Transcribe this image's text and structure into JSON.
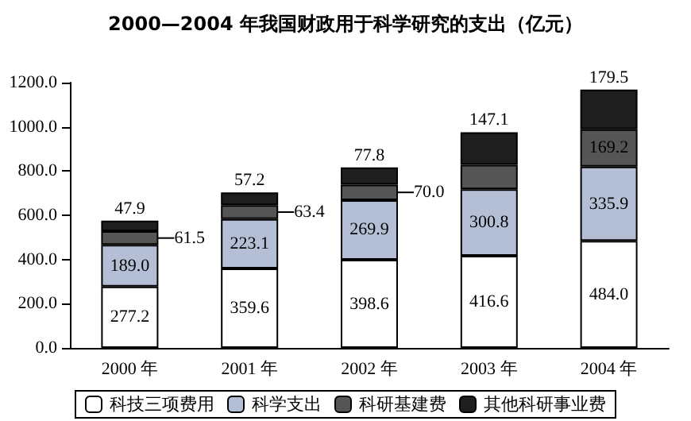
{
  "chart_data": {
    "type": "bar",
    "title": "2000—2004 年我国财政用于科学研究的支出（亿元）",
    "categories": [
      "2000 年",
      "2001 年",
      "2002 年",
      "2003 年",
      "2004 年"
    ],
    "stacked": true,
    "series": [
      {
        "name": "科技三项费用",
        "color": "#ffffff",
        "values": [
          277.2,
          359.6,
          398.6,
          416.6,
          484.0
        ],
        "value_labels": [
          "277.2",
          "359.6",
          "398.6",
          "416.6",
          "484.0"
        ]
      },
      {
        "name": "科学支出",
        "color": "#b4bfd6",
        "values": [
          189.0,
          223.1,
          269.9,
          300.8,
          335.9
        ],
        "value_labels": [
          "189.0",
          "223.1",
          "269.9",
          "300.8",
          "335.9"
        ]
      },
      {
        "name": "科研基建费",
        "color": "#555555",
        "values": [
          61.5,
          63.4,
          70.0,
          111,
          169.2
        ],
        "value_labels": [
          "61.5",
          "63.4",
          "70.0",
          null,
          "169.2"
        ]
      },
      {
        "name": "其他科研事业费",
        "color": "#1e1e1e",
        "values": [
          47.9,
          57.2,
          77.8,
          147.1,
          179.5
        ],
        "value_labels": [
          "47.9",
          "57.2",
          "77.8",
          "147.1",
          "179.5"
        ]
      }
    ],
    "ylim": [
      0,
      1200
    ],
    "yticks": [
      {
        "value": 0,
        "label": "0.0"
      },
      {
        "value": 200,
        "label": "200.0"
      },
      {
        "value": 400,
        "label": "400.0"
      },
      {
        "value": 600,
        "label": "600.0"
      },
      {
        "value": 800,
        "label": "800.0"
      },
      {
        "value": 1000,
        "label": "1000.0"
      },
      {
        "value": 1200,
        "label": "1200.0"
      }
    ],
    "grid": false,
    "legend": "bottom"
  }
}
